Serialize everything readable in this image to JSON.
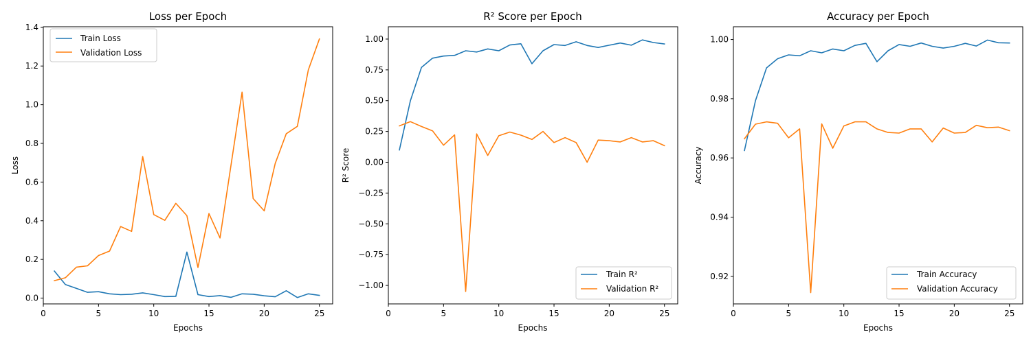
{
  "chart_data": [
    {
      "type": "line",
      "title": "Loss per Epoch",
      "xlabel": "Epochs",
      "ylabel": "Loss",
      "xlim": [
        0,
        26.2
      ],
      "ylim": [
        -0.03,
        1.403
      ],
      "xticks": [
        0,
        5,
        10,
        15,
        20,
        25
      ],
      "yticks": [
        0.0,
        0.2,
        0.4,
        0.6,
        0.8,
        1.0,
        1.2,
        1.4
      ],
      "ytick_labels": [
        "0.0",
        "0.2",
        "0.4",
        "0.6",
        "0.8",
        "1.0",
        "1.2",
        "1.4"
      ],
      "legend_position": "top-left",
      "grid": false,
      "x": [
        1,
        2,
        3,
        4,
        5,
        6,
        7,
        8,
        9,
        10,
        11,
        12,
        13,
        14,
        15,
        16,
        17,
        18,
        19,
        20,
        21,
        22,
        23,
        24,
        25
      ],
      "series": [
        {
          "name": "Train Loss",
          "color": "#1f77b4",
          "values": [
            0.14,
            0.07,
            0.05,
            0.03,
            0.033,
            0.022,
            0.018,
            0.02,
            0.027,
            0.018,
            0.008,
            0.009,
            0.238,
            0.018,
            0.008,
            0.013,
            0.004,
            0.022,
            0.02,
            0.012,
            0.007,
            0.038,
            0.003,
            0.022,
            0.014
          ]
        },
        {
          "name": "Validation Loss",
          "color": "#ff7f0e",
          "values": [
            0.09,
            0.105,
            0.16,
            0.167,
            0.22,
            0.243,
            0.37,
            0.345,
            0.732,
            0.432,
            0.402,
            0.49,
            0.426,
            0.158,
            0.437,
            0.311,
            0.69,
            1.065,
            0.515,
            0.451,
            0.696,
            0.85,
            0.888,
            1.18,
            1.34
          ]
        }
      ]
    },
    {
      "type": "line",
      "title": "R² Score per Epoch",
      "xlabel": "Epochs",
      "ylabel": "R² Score",
      "xlim": [
        0,
        26.2
      ],
      "ylim": [
        -1.15,
        1.1
      ],
      "xticks": [
        0,
        5,
        10,
        15,
        20,
        25
      ],
      "yticks": [
        -1.0,
        -0.75,
        -0.5,
        -0.25,
        0.0,
        0.25,
        0.5,
        0.75,
        1.0
      ],
      "ytick_labels": [
        "−1.00",
        "−0.75",
        "−0.50",
        "−0.25",
        "0.00",
        "0.25",
        "0.50",
        "0.75",
        "1.00"
      ],
      "legend_position": "bottom-right",
      "grid": false,
      "x": [
        1,
        2,
        3,
        4,
        5,
        6,
        7,
        8,
        9,
        10,
        11,
        12,
        13,
        14,
        15,
        16,
        17,
        18,
        19,
        20,
        21,
        22,
        23,
        24,
        25
      ],
      "series": [
        {
          "name": "Train R²",
          "color": "#1f77b4",
          "values": [
            0.1,
            0.5,
            0.77,
            0.845,
            0.862,
            0.868,
            0.905,
            0.895,
            0.92,
            0.905,
            0.952,
            0.962,
            0.8,
            0.905,
            0.955,
            0.948,
            0.978,
            0.948,
            0.932,
            0.95,
            0.968,
            0.95,
            0.993,
            0.972,
            0.96
          ]
        },
        {
          "name": "Validation R²",
          "color": "#ff7f0e",
          "values": [
            0.295,
            0.33,
            0.29,
            0.255,
            0.138,
            0.222,
            -1.05,
            0.23,
            0.055,
            0.215,
            0.245,
            0.22,
            0.185,
            0.25,
            0.16,
            0.2,
            0.16,
            0.0,
            0.18,
            0.175,
            0.165,
            0.2,
            0.165,
            0.175,
            0.135
          ]
        }
      ]
    },
    {
      "type": "line",
      "title": "Accuracy per Epoch",
      "xlabel": "Epochs",
      "ylabel": "Accuracy",
      "xlim": [
        0,
        26.2
      ],
      "ylim": [
        0.9107,
        1.0043
      ],
      "xticks": [
        0,
        5,
        10,
        15,
        20,
        25
      ],
      "yticks": [
        0.92,
        0.94,
        0.96,
        0.98,
        1.0
      ],
      "ytick_labels": [
        "0.92",
        "0.94",
        "0.96",
        "0.98",
        "1.00"
      ],
      "legend_position": "bottom-right",
      "grid": false,
      "x": [
        1,
        2,
        3,
        4,
        5,
        6,
        7,
        8,
        9,
        10,
        11,
        12,
        13,
        14,
        15,
        16,
        17,
        18,
        19,
        20,
        21,
        22,
        23,
        24,
        25
      ],
      "series": [
        {
          "name": "Train Accuracy",
          "color": "#1f77b4",
          "values": [
            0.9625,
            0.9793,
            0.9904,
            0.9935,
            0.9948,
            0.9945,
            0.9962,
            0.9955,
            0.9968,
            0.9962,
            0.998,
            0.9987,
            0.9925,
            0.9962,
            0.9983,
            0.9977,
            0.9988,
            0.9977,
            0.9971,
            0.9977,
            0.9987,
            0.9978,
            0.9998,
            0.9989,
            0.9988
          ]
        },
        {
          "name": "Validation Accuracy",
          "color": "#ff7f0e",
          "values": [
            0.9665,
            0.9714,
            0.9722,
            0.9717,
            0.9668,
            0.9698,
            0.9145,
            0.9715,
            0.9633,
            0.9708,
            0.9722,
            0.9722,
            0.9698,
            0.9686,
            0.9684,
            0.9698,
            0.9698,
            0.9654,
            0.9701,
            0.9684,
            0.9686,
            0.971,
            0.9702,
            0.9704,
            0.9692
          ]
        }
      ]
    }
  ]
}
